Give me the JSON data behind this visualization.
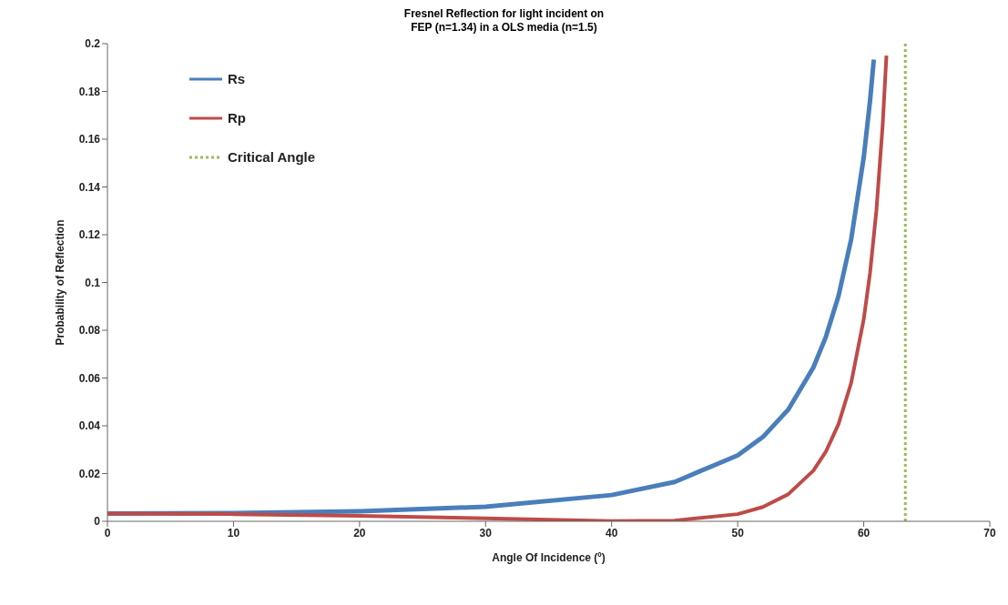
{
  "chart_data": {
    "type": "line",
    "title": "Fresnel Reflection for light incident on\nFEP (n=1.34) in a OLS media (n=1.5)",
    "xlabel": "Angle Of Incidence (º)",
    "ylabel": "Probability of Reflection",
    "series": [
      {
        "name": "Rs",
        "color": "#4a7ebb",
        "x": [
          0,
          10,
          20,
          30,
          40,
          45,
          50,
          52,
          54,
          56,
          57,
          58,
          59,
          60,
          60.5,
          60.8
        ],
        "values": [
          0.0032,
          0.0034,
          0.0042,
          0.0061,
          0.011,
          0.0165,
          0.0276,
          0.0353,
          0.0467,
          0.0644,
          0.0773,
          0.0944,
          0.118,
          0.1524,
          0.1761,
          0.1933
        ]
      },
      {
        "name": "Rp",
        "color": "#be4b48",
        "x": [
          0,
          10,
          20,
          30,
          40,
          45,
          50,
          52,
          54,
          56,
          57,
          58,
          59,
          60,
          60.5,
          61,
          61.5,
          61.8
        ],
        "values": [
          0.0032,
          0.003,
          0.0023,
          0.0012,
          0.0001,
          0.0003,
          0.003,
          0.006,
          0.0113,
          0.0212,
          0.0292,
          0.0407,
          0.0579,
          0.0846,
          0.104,
          0.1299,
          0.1658,
          0.195
        ]
      },
      {
        "name": "Critical Angle",
        "color": "#9bbb59",
        "line_style": "dotted",
        "x": [
          63.3,
          63.3
        ],
        "values": [
          0,
          0.2
        ]
      }
    ],
    "xlim": [
      0,
      70
    ],
    "xticks": [
      0,
      10,
      20,
      30,
      40,
      50,
      60,
      70
    ],
    "ylim": [
      0,
      0.2
    ],
    "yticks": [
      0,
      0.02,
      0.04,
      0.06,
      0.08,
      0.1,
      0.12,
      0.14,
      0.16,
      0.18,
      0.2
    ],
    "grid": false,
    "legend": "top left",
    "marker": "none",
    "line_style": "solid"
  }
}
